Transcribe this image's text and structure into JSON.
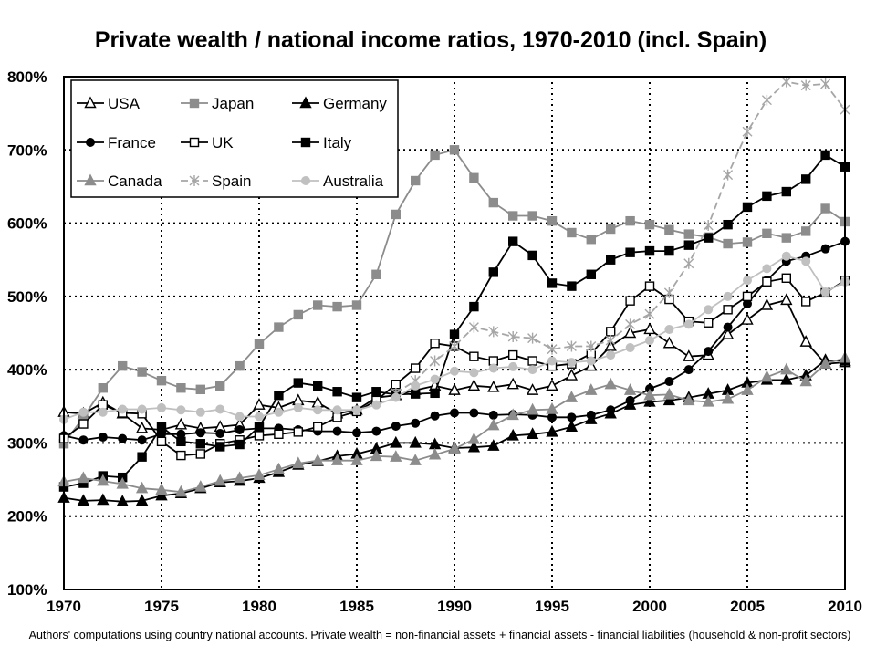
{
  "chart_data": {
    "type": "line",
    "title": "Private wealth / national income ratios, 1970-2010 (incl. Spain)",
    "footnote": "Authors' computations using country national accounts. Private wealth = non-financial assets + financial assets - financial liabilities (household & non-profit sectors)",
    "xlim": [
      1970,
      2010
    ],
    "ylim": [
      100,
      800
    ],
    "x_ticks": [
      1970,
      1975,
      1980,
      1985,
      1990,
      1995,
      2000,
      2005,
      2010
    ],
    "x_tick_labels": [
      "1970",
      "1975",
      "1980",
      "1985",
      "1990",
      "1995",
      "2000",
      "2005",
      "2010"
    ],
    "y_ticks": [
      100,
      200,
      300,
      400,
      500,
      600,
      700,
      800
    ],
    "y_tick_labels": [
      "100%",
      "200%",
      "300%",
      "400%",
      "500%",
      "600%",
      "700%",
      "800%"
    ],
    "grid": "dotted",
    "legend_position": "top-left",
    "series": [
      {
        "name": "USA",
        "color": "#000000",
        "marker": "triangle-open",
        "dash": "",
        "x": [
          1970,
          1971,
          1972,
          1973,
          1974,
          1975,
          1976,
          1977,
          1978,
          1979,
          1980,
          1981,
          1982,
          1983,
          1984,
          1985,
          1986,
          1987,
          1988,
          1989,
          1990,
          1991,
          1992,
          1993,
          1994,
          1995,
          1996,
          1997,
          1998,
          1999,
          2000,
          2001,
          2002,
          2003,
          2004,
          2005,
          2006,
          2007,
          2008,
          2009,
          2010
        ],
        "y": [
          342,
          340,
          355,
          340,
          320,
          318,
          325,
          320,
          322,
          325,
          352,
          348,
          358,
          355,
          340,
          345,
          362,
          365,
          372,
          378,
          372,
          378,
          376,
          380,
          372,
          378,
          392,
          405,
          432,
          450,
          455,
          436,
          418,
          420,
          448,
          468,
          488,
          495,
          438,
          408,
          410
        ]
      },
      {
        "name": "Japan",
        "color": "#8c8c8c",
        "marker": "square",
        "dash": "",
        "x": [
          1970,
          1971,
          1972,
          1973,
          1974,
          1975,
          1976,
          1977,
          1978,
          1979,
          1980,
          1981,
          1982,
          1983,
          1984,
          1985,
          1986,
          1987,
          1988,
          1989,
          1990,
          1991,
          1992,
          1993,
          1994,
          1995,
          1996,
          1997,
          1998,
          1999,
          2000,
          2001,
          2002,
          2003,
          2004,
          2005,
          2006,
          2007,
          2008,
          2009,
          2010
        ],
        "y": [
          299,
          335,
          375,
          405,
          397,
          385,
          375,
          373,
          378,
          405,
          435,
          458,
          475,
          488,
          486,
          488,
          530,
          612,
          658,
          693,
          700,
          662,
          628,
          610,
          610,
          603,
          587,
          578,
          592,
          603,
          598,
          591,
          585,
          581,
          572,
          574,
          586,
          580,
          589,
          620,
          602
        ]
      },
      {
        "name": "Germany",
        "color": "#000000",
        "marker": "triangle",
        "dash": "",
        "x": [
          1970,
          1971,
          1972,
          1973,
          1974,
          1975,
          1976,
          1977,
          1978,
          1979,
          1980,
          1981,
          1982,
          1983,
          1984,
          1985,
          1986,
          1987,
          1988,
          1989,
          1990,
          1991,
          1992,
          1993,
          1994,
          1995,
          1996,
          1997,
          1998,
          1999,
          2000,
          2001,
          2002,
          2003,
          2004,
          2005,
          2006,
          2007,
          2008,
          2009,
          2010
        ],
        "y": [
          225,
          221,
          222,
          220,
          221,
          228,
          231,
          238,
          246,
          248,
          252,
          260,
          270,
          275,
          282,
          285,
          292,
          300,
          300,
          298,
          293,
          294,
          296,
          310,
          312,
          315,
          322,
          332,
          340,
          352,
          356,
          358,
          362,
          367,
          372,
          382,
          386,
          386,
          392,
          413,
          412
        ]
      },
      {
        "name": "France",
        "color": "#000000",
        "marker": "circle",
        "dash": "",
        "x": [
          1970,
          1971,
          1972,
          1973,
          1974,
          1975,
          1976,
          1977,
          1978,
          1979,
          1980,
          1981,
          1982,
          1983,
          1984,
          1985,
          1986,
          1987,
          1988,
          1989,
          1990,
          1991,
          1992,
          1993,
          1994,
          1995,
          1996,
          1997,
          1998,
          1999,
          2000,
          2001,
          2002,
          2003,
          2004,
          2005,
          2006,
          2007,
          2008,
          2009,
          2010
        ],
        "y": [
          310,
          304,
          308,
          306,
          304,
          312,
          312,
          314,
          313,
          318,
          320,
          320,
          318,
          316,
          316,
          314,
          316,
          323,
          327,
          337,
          341,
          341,
          338,
          339,
          338,
          335,
          335,
          338,
          345,
          358,
          374,
          384,
          400,
          425,
          458,
          490,
          522,
          548,
          555,
          565,
          575
        ]
      },
      {
        "name": "UK",
        "color": "#000000",
        "marker": "square-open",
        "dash": "",
        "x": [
          1970,
          1971,
          1972,
          1973,
          1974,
          1975,
          1976,
          1977,
          1978,
          1979,
          1980,
          1981,
          1982,
          1983,
          1984,
          1985,
          1986,
          1987,
          1988,
          1989,
          1990,
          1991,
          1992,
          1993,
          1994,
          1995,
          1996,
          1997,
          1998,
          1999,
          2000,
          2001,
          2002,
          2003,
          2004,
          2005,
          2006,
          2007,
          2008,
          2009,
          2010
        ],
        "y": [
          306,
          326,
          352,
          341,
          340,
          302,
          283,
          285,
          299,
          304,
          310,
          312,
          315,
          322,
          335,
          343,
          358,
          380,
          402,
          436,
          432,
          418,
          412,
          420,
          412,
          405,
          408,
          422,
          452,
          494,
          514,
          496,
          466,
          464,
          482,
          500,
          520,
          525,
          493,
          505,
          522
        ]
      },
      {
        "name": "Italy",
        "color": "#000000",
        "marker": "square",
        "dash": "",
        "x": [
          1970,
          1971,
          1972,
          1973,
          1974,
          1975,
          1976,
          1977,
          1978,
          1979,
          1980,
          1981,
          1982,
          1983,
          1984,
          1985,
          1986,
          1987,
          1988,
          1989,
          1990,
          1991,
          1992,
          1993,
          1994,
          1995,
          1996,
          1997,
          1998,
          1999,
          2000,
          2001,
          2002,
          2003,
          2004,
          2005,
          2006,
          2007,
          2008,
          2009,
          2010
        ],
        "y": [
          240,
          245,
          255,
          253,
          281,
          322,
          302,
          299,
          295,
          298,
          322,
          365,
          382,
          378,
          370,
          362,
          370,
          366,
          367,
          368,
          448,
          486,
          533,
          575,
          556,
          518,
          514,
          530,
          550,
          560,
          562,
          562,
          570,
          580,
          598,
          622,
          637,
          643,
          660,
          693,
          677
        ]
      },
      {
        "name": "Canada",
        "color": "#8c8c8c",
        "marker": "triangle",
        "dash": "",
        "x": [
          1970,
          1971,
          1972,
          1973,
          1974,
          1975,
          1976,
          1977,
          1978,
          1979,
          1980,
          1981,
          1982,
          1983,
          1984,
          1985,
          1986,
          1987,
          1988,
          1989,
          1990,
          1991,
          1992,
          1993,
          1994,
          1995,
          1996,
          1997,
          1998,
          1999,
          2000,
          2001,
          2002,
          2003,
          2004,
          2005,
          2006,
          2007,
          2008,
          2009,
          2010
        ],
        "y": [
          247,
          252,
          248,
          244,
          238,
          236,
          233,
          240,
          248,
          252,
          256,
          264,
          272,
          276,
          276,
          276,
          282,
          281,
          276,
          284,
          292,
          305,
          324,
          338,
          345,
          346,
          362,
          372,
          380,
          372,
          365,
          366,
          358,
          356,
          360,
          372,
          390,
          400,
          384,
          408,
          416
        ]
      },
      {
        "name": "Spain",
        "color": "#a6a6a6",
        "marker": "star",
        "dash": "8,4",
        "x": [
          1987,
          1988,
          1989,
          1990,
          1991,
          1992,
          1993,
          1994,
          1995,
          1996,
          1997,
          1998,
          1999,
          2000,
          2001,
          2002,
          2003,
          2004,
          2005,
          2006,
          2007,
          2008,
          2009,
          2010
        ],
        "y": [
          368,
          385,
          412,
          432,
          458,
          452,
          445,
          443,
          428,
          432,
          432,
          440,
          462,
          476,
          505,
          545,
          597,
          666,
          725,
          768,
          793,
          788,
          790,
          755
        ]
      },
      {
        "name": "Australia",
        "color": "#c0c0c0",
        "marker": "circle",
        "dash": "",
        "x": [
          1970,
          1971,
          1972,
          1973,
          1974,
          1975,
          1976,
          1977,
          1978,
          1979,
          1980,
          1981,
          1982,
          1983,
          1984,
          1985,
          1986,
          1987,
          1988,
          1989,
          1990,
          1991,
          1992,
          1993,
          1994,
          1995,
          1996,
          1997,
          1998,
          1999,
          2000,
          2001,
          2002,
          2003,
          2004,
          2005,
          2006,
          2007,
          2008,
          2009,
          2010
        ],
        "y": [
          332,
          342,
          342,
          346,
          346,
          348,
          345,
          342,
          346,
          336,
          336,
          342,
          348,
          345,
          345,
          345,
          352,
          362,
          378,
          387,
          398,
          396,
          402,
          404,
          400,
          412,
          410,
          412,
          420,
          430,
          440,
          455,
          462,
          482,
          500,
          522,
          538,
          555,
          548,
          506,
          520
        ]
      }
    ]
  }
}
